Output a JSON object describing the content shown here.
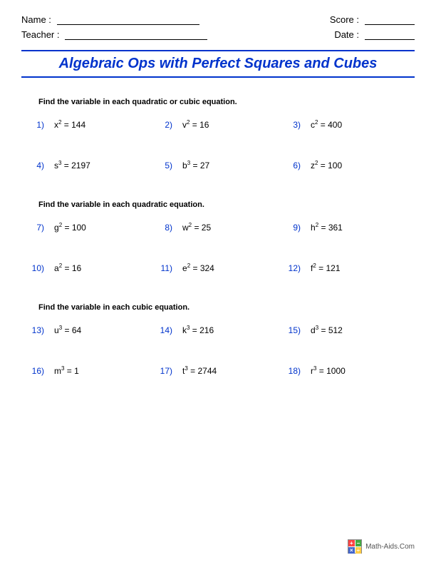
{
  "header": {
    "name_label": "Name :",
    "teacher_label": "Teacher :",
    "score_label": "Score :",
    "date_label": "Date :"
  },
  "title": "Algebraic Ops with Perfect Squares and Cubes",
  "sections": [
    {
      "instruction": "Find the variable in each quadratic or cubic equation.",
      "problems": [
        {
          "num": "1)",
          "var": "x",
          "exp": "2",
          "val": "144"
        },
        {
          "num": "2)",
          "var": "v",
          "exp": "2",
          "val": "16"
        },
        {
          "num": "3)",
          "var": "c",
          "exp": "2",
          "val": "400"
        },
        {
          "num": "4)",
          "var": "s",
          "exp": "3",
          "val": "2197"
        },
        {
          "num": "5)",
          "var": "b",
          "exp": "3",
          "val": "27"
        },
        {
          "num": "6)",
          "var": "z",
          "exp": "2",
          "val": "100"
        }
      ]
    },
    {
      "instruction": "Find the variable in each quadratic equation.",
      "problems": [
        {
          "num": "7)",
          "var": "g",
          "exp": "2",
          "val": "100"
        },
        {
          "num": "8)",
          "var": "w",
          "exp": "2",
          "val": "25"
        },
        {
          "num": "9)",
          "var": "h",
          "exp": "2",
          "val": "361"
        },
        {
          "num": "10)",
          "var": "a",
          "exp": "2",
          "val": "16"
        },
        {
          "num": "11)",
          "var": "e",
          "exp": "2",
          "val": "324"
        },
        {
          "num": "12)",
          "var": "f",
          "exp": "2",
          "val": "121"
        }
      ]
    },
    {
      "instruction": "Find the variable in each cubic equation.",
      "problems": [
        {
          "num": "13)",
          "var": "u",
          "exp": "3",
          "val": "64"
        },
        {
          "num": "14)",
          "var": "k",
          "exp": "3",
          "val": "216"
        },
        {
          "num": "15)",
          "var": "d",
          "exp": "3",
          "val": "512"
        },
        {
          "num": "16)",
          "var": "m",
          "exp": "3",
          "val": "1"
        },
        {
          "num": "17)",
          "var": "t",
          "exp": "3",
          "val": "2744"
        },
        {
          "num": "18)",
          "var": "r",
          "exp": "3",
          "val": "1000"
        }
      ]
    }
  ],
  "footer": {
    "text": "Math-Aids.Com",
    "icon_colors": [
      "#ff4444",
      "#44aa44",
      "#4466cc",
      "#ffcc44"
    ],
    "icon_symbols": [
      "+",
      "−",
      "×",
      "÷"
    ]
  },
  "colors": {
    "accent": "#0033cc",
    "text": "#000000",
    "background": "#ffffff"
  }
}
